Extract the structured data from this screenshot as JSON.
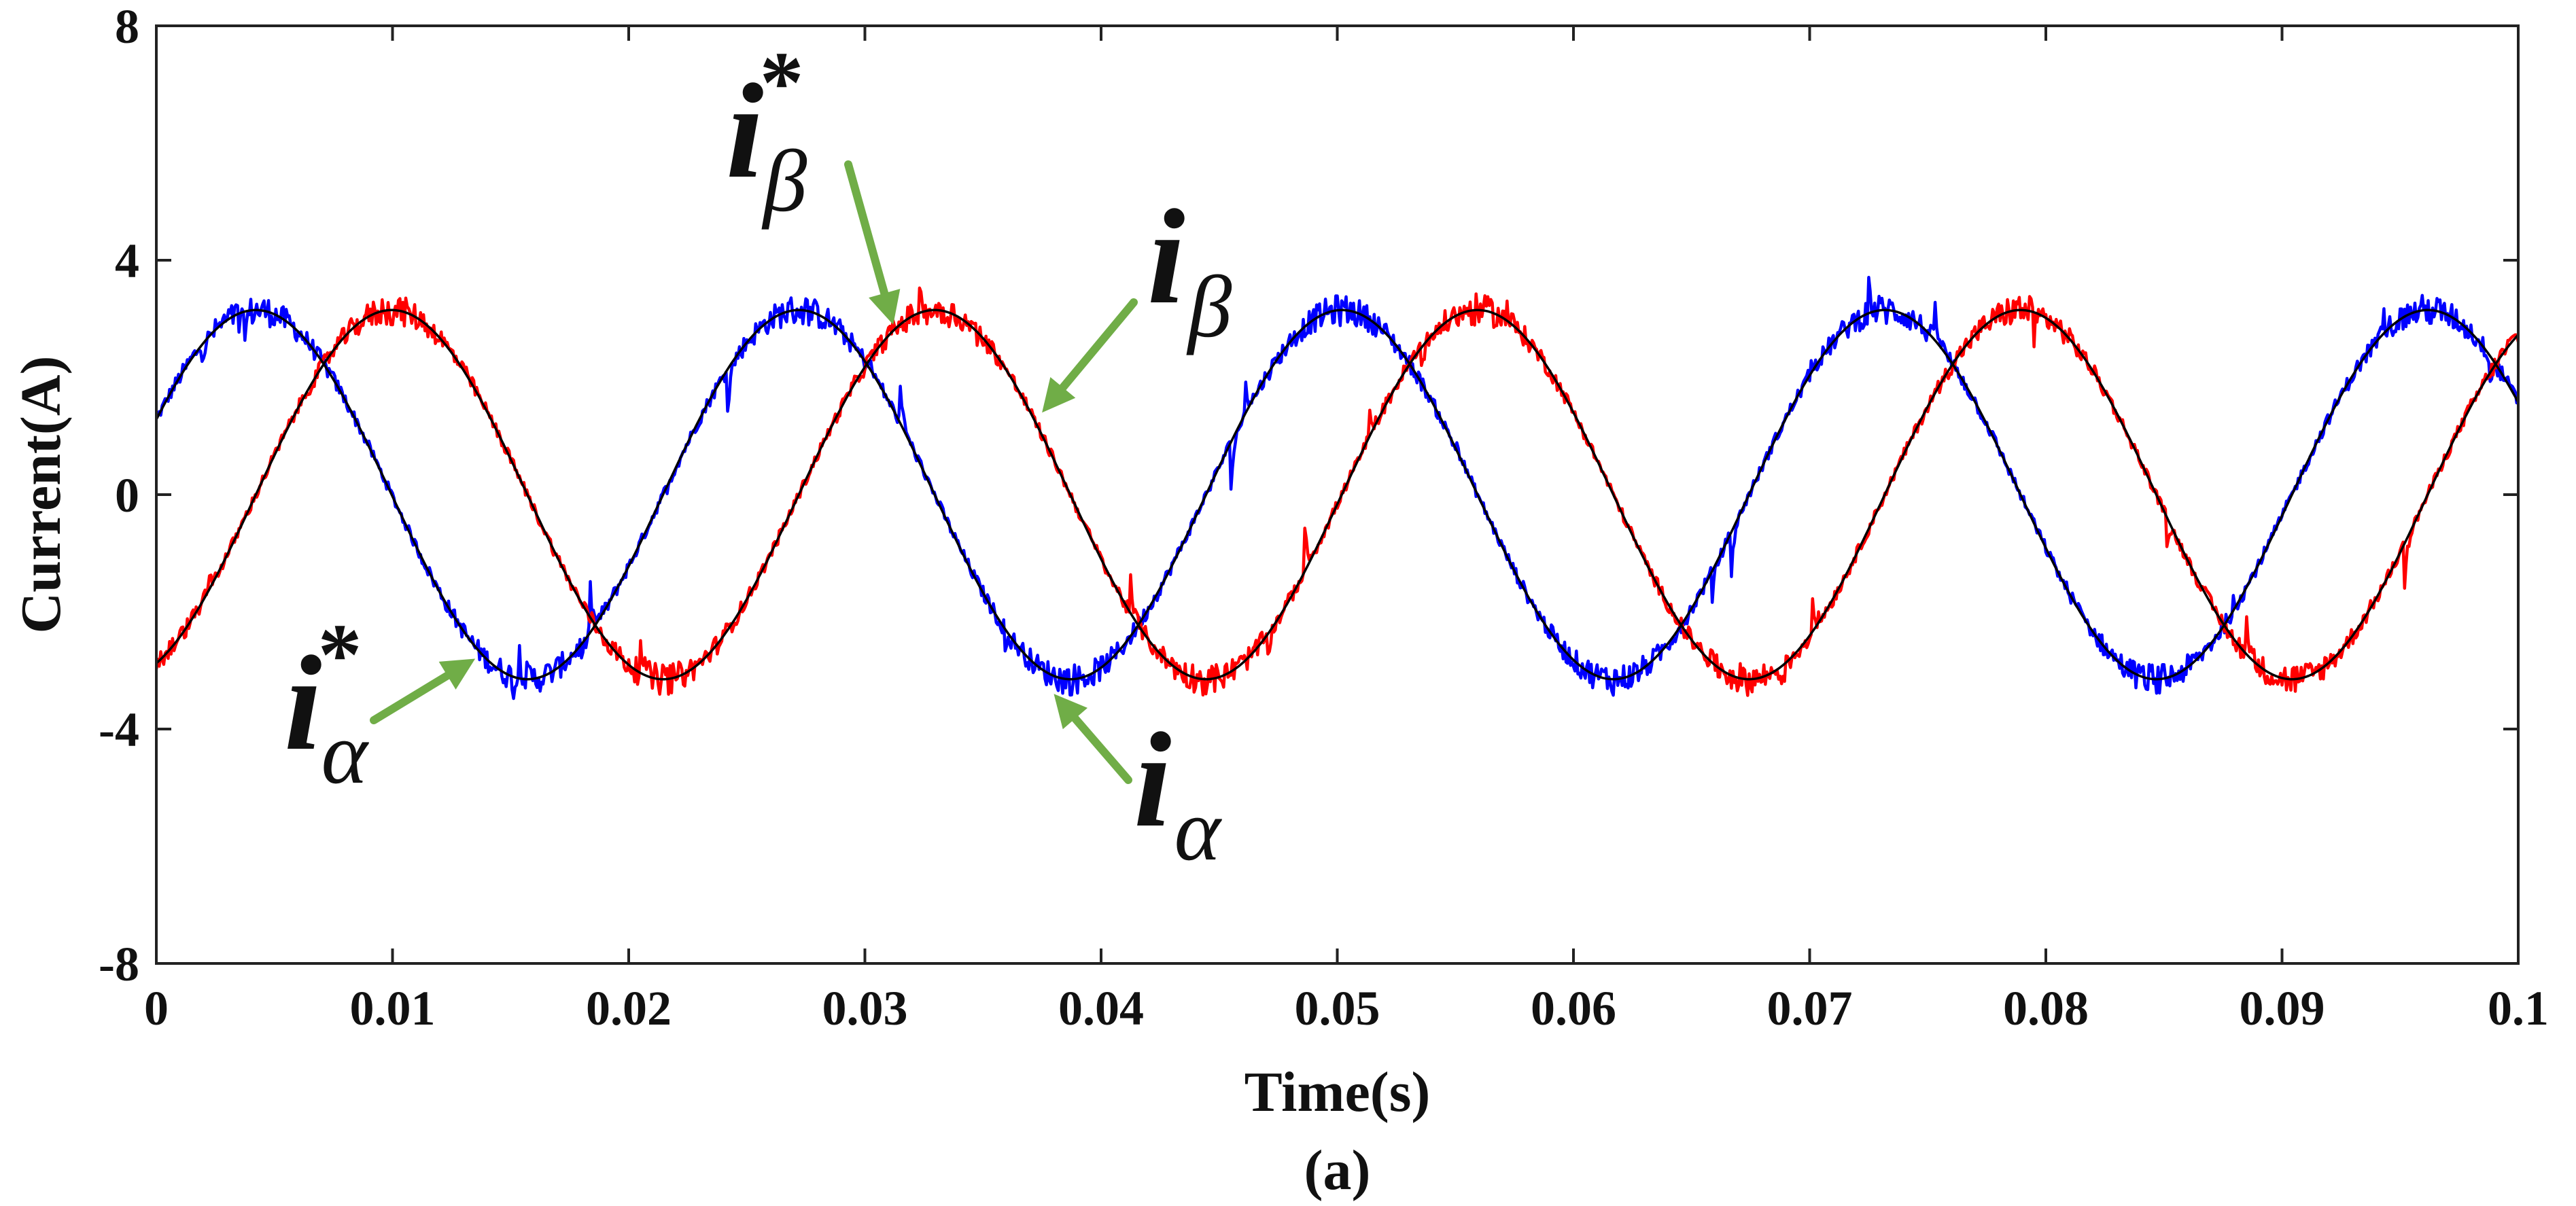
{
  "chart_data": {
    "type": "line",
    "title": "",
    "xlabel": "Time(s)",
    "ylabel": "Current(A)",
    "caption": "(a)",
    "xlim": [
      0,
      0.1
    ],
    "ylim": [
      -8,
      8
    ],
    "grid": false,
    "x_ticks": [
      0,
      0.01,
      0.02,
      0.03,
      0.04,
      0.05,
      0.06,
      0.07,
      0.08,
      0.09,
      0.1
    ],
    "x_tick_labels": [
      "0",
      "0.01",
      "0.02",
      "0.03",
      "0.04",
      "0.05",
      "0.06",
      "0.07",
      "0.08",
      "0.09",
      "0.1"
    ],
    "y_ticks": [
      -8,
      -4,
      0,
      4,
      8
    ],
    "y_tick_labels": [
      "-8",
      "-4",
      "0",
      "4",
      "8"
    ],
    "series": [
      {
        "name": "i_alpha",
        "color": "#0000ff",
        "amplitude": 3.15,
        "frequency_hz": 43.5,
        "phase_deg": 24,
        "noisy": true
      },
      {
        "name": "i_beta",
        "color": "#ff0000",
        "amplitude": 3.15,
        "frequency_hz": 43.5,
        "phase_deg": -66,
        "noisy": true
      },
      {
        "name": "i_alpha*",
        "color": "#000000",
        "amplitude": 3.15,
        "frequency_hz": 43.5,
        "phase_deg": 24,
        "noisy": false
      },
      {
        "name": "i_beta*",
        "color": "#000000",
        "amplitude": 3.15,
        "frequency_hz": 43.5,
        "phase_deg": -66,
        "noisy": false
      }
    ],
    "annotations": [
      {
        "id": "i-beta-star",
        "main": "i",
        "sub": "β",
        "sup": "*",
        "arrow_to": [
          0.0312,
          2.9
        ]
      },
      {
        "id": "i-beta",
        "main": "i",
        "sub": "β",
        "sup": "",
        "arrow_to": [
          0.0375,
          1.4
        ]
      },
      {
        "id": "i-alpha-star",
        "main": "i",
        "sub": "α",
        "sup": "*",
        "arrow_to": [
          0.0135,
          -2.8
        ]
      },
      {
        "id": "i-alpha",
        "main": "i",
        "sub": "α",
        "sup": "",
        "arrow_to": [
          0.038,
          -3.4
        ]
      }
    ],
    "arrow_color": "#70ad47"
  }
}
